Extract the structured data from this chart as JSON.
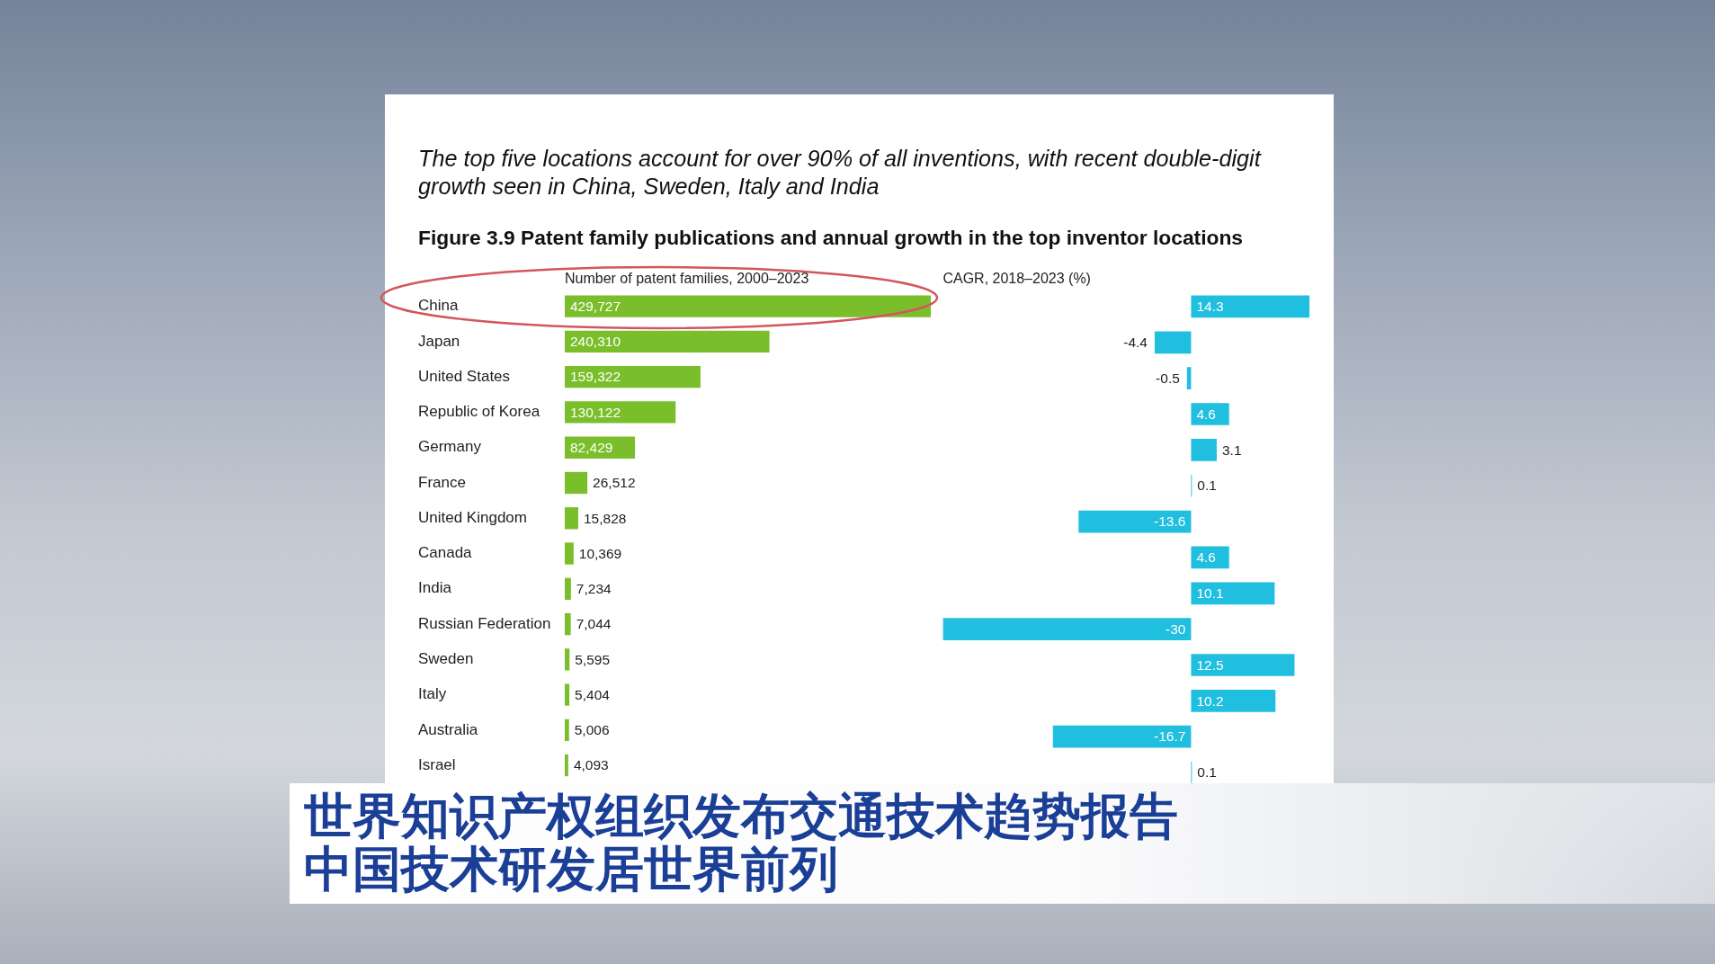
{
  "chart_data": [
    {
      "type": "bar",
      "orientation": "horizontal",
      "title": "The top five locations account for over 90% of all inventions, with recent double-digit growth seen in China, Sweden, Italy and India",
      "subtitle": "Figure 3.9 Patent family publications and annual growth in the top inventor locations",
      "xlabel": "Number of patent families, 2000–2023",
      "categories": [
        "China",
        "Japan",
        "United States",
        "Republic of Korea",
        "Germany",
        "France",
        "United Kingdom",
        "Canada",
        "India",
        "Russian Federation",
        "Sweden",
        "Italy",
        "Australia",
        "Israel"
      ],
      "values": [
        429727,
        240310,
        159322,
        130122,
        82429,
        26512,
        15828,
        10369,
        7234,
        7044,
        5595,
        5404,
        5006,
        4093
      ],
      "value_labels": [
        "429,727",
        "240,310",
        "159,322",
        "130,122",
        "82,429",
        "26,512",
        "15,828",
        "10,369",
        "7,234",
        "7,044",
        "5,595",
        "5,404",
        "5,006",
        "4,093"
      ],
      "color": "#7abf2b",
      "tick_labels": "y",
      "annotations": [
        "世界知识产权组织发布交通技术趋势报告",
        "中国技术研发居世界前列"
      ]
    },
    {
      "type": "bar",
      "orientation": "horizontal",
      "xlabel": "CAGR, 2018–2023 (%)",
      "categories": [
        null,
        null,
        null,
        null,
        null,
        null,
        null,
        null,
        null,
        null,
        null,
        null,
        null,
        null
      ],
      "values": [
        14.3,
        -4.4,
        -0.5,
        4.6,
        3.1,
        0.1,
        -13.6,
        4.6,
        10.1,
        -30,
        12.5,
        10.2,
        -16.7,
        0.1
      ],
      "color": "#20bfe0",
      "data_labels": true,
      "tick_labels": false
    }
  ]
}
